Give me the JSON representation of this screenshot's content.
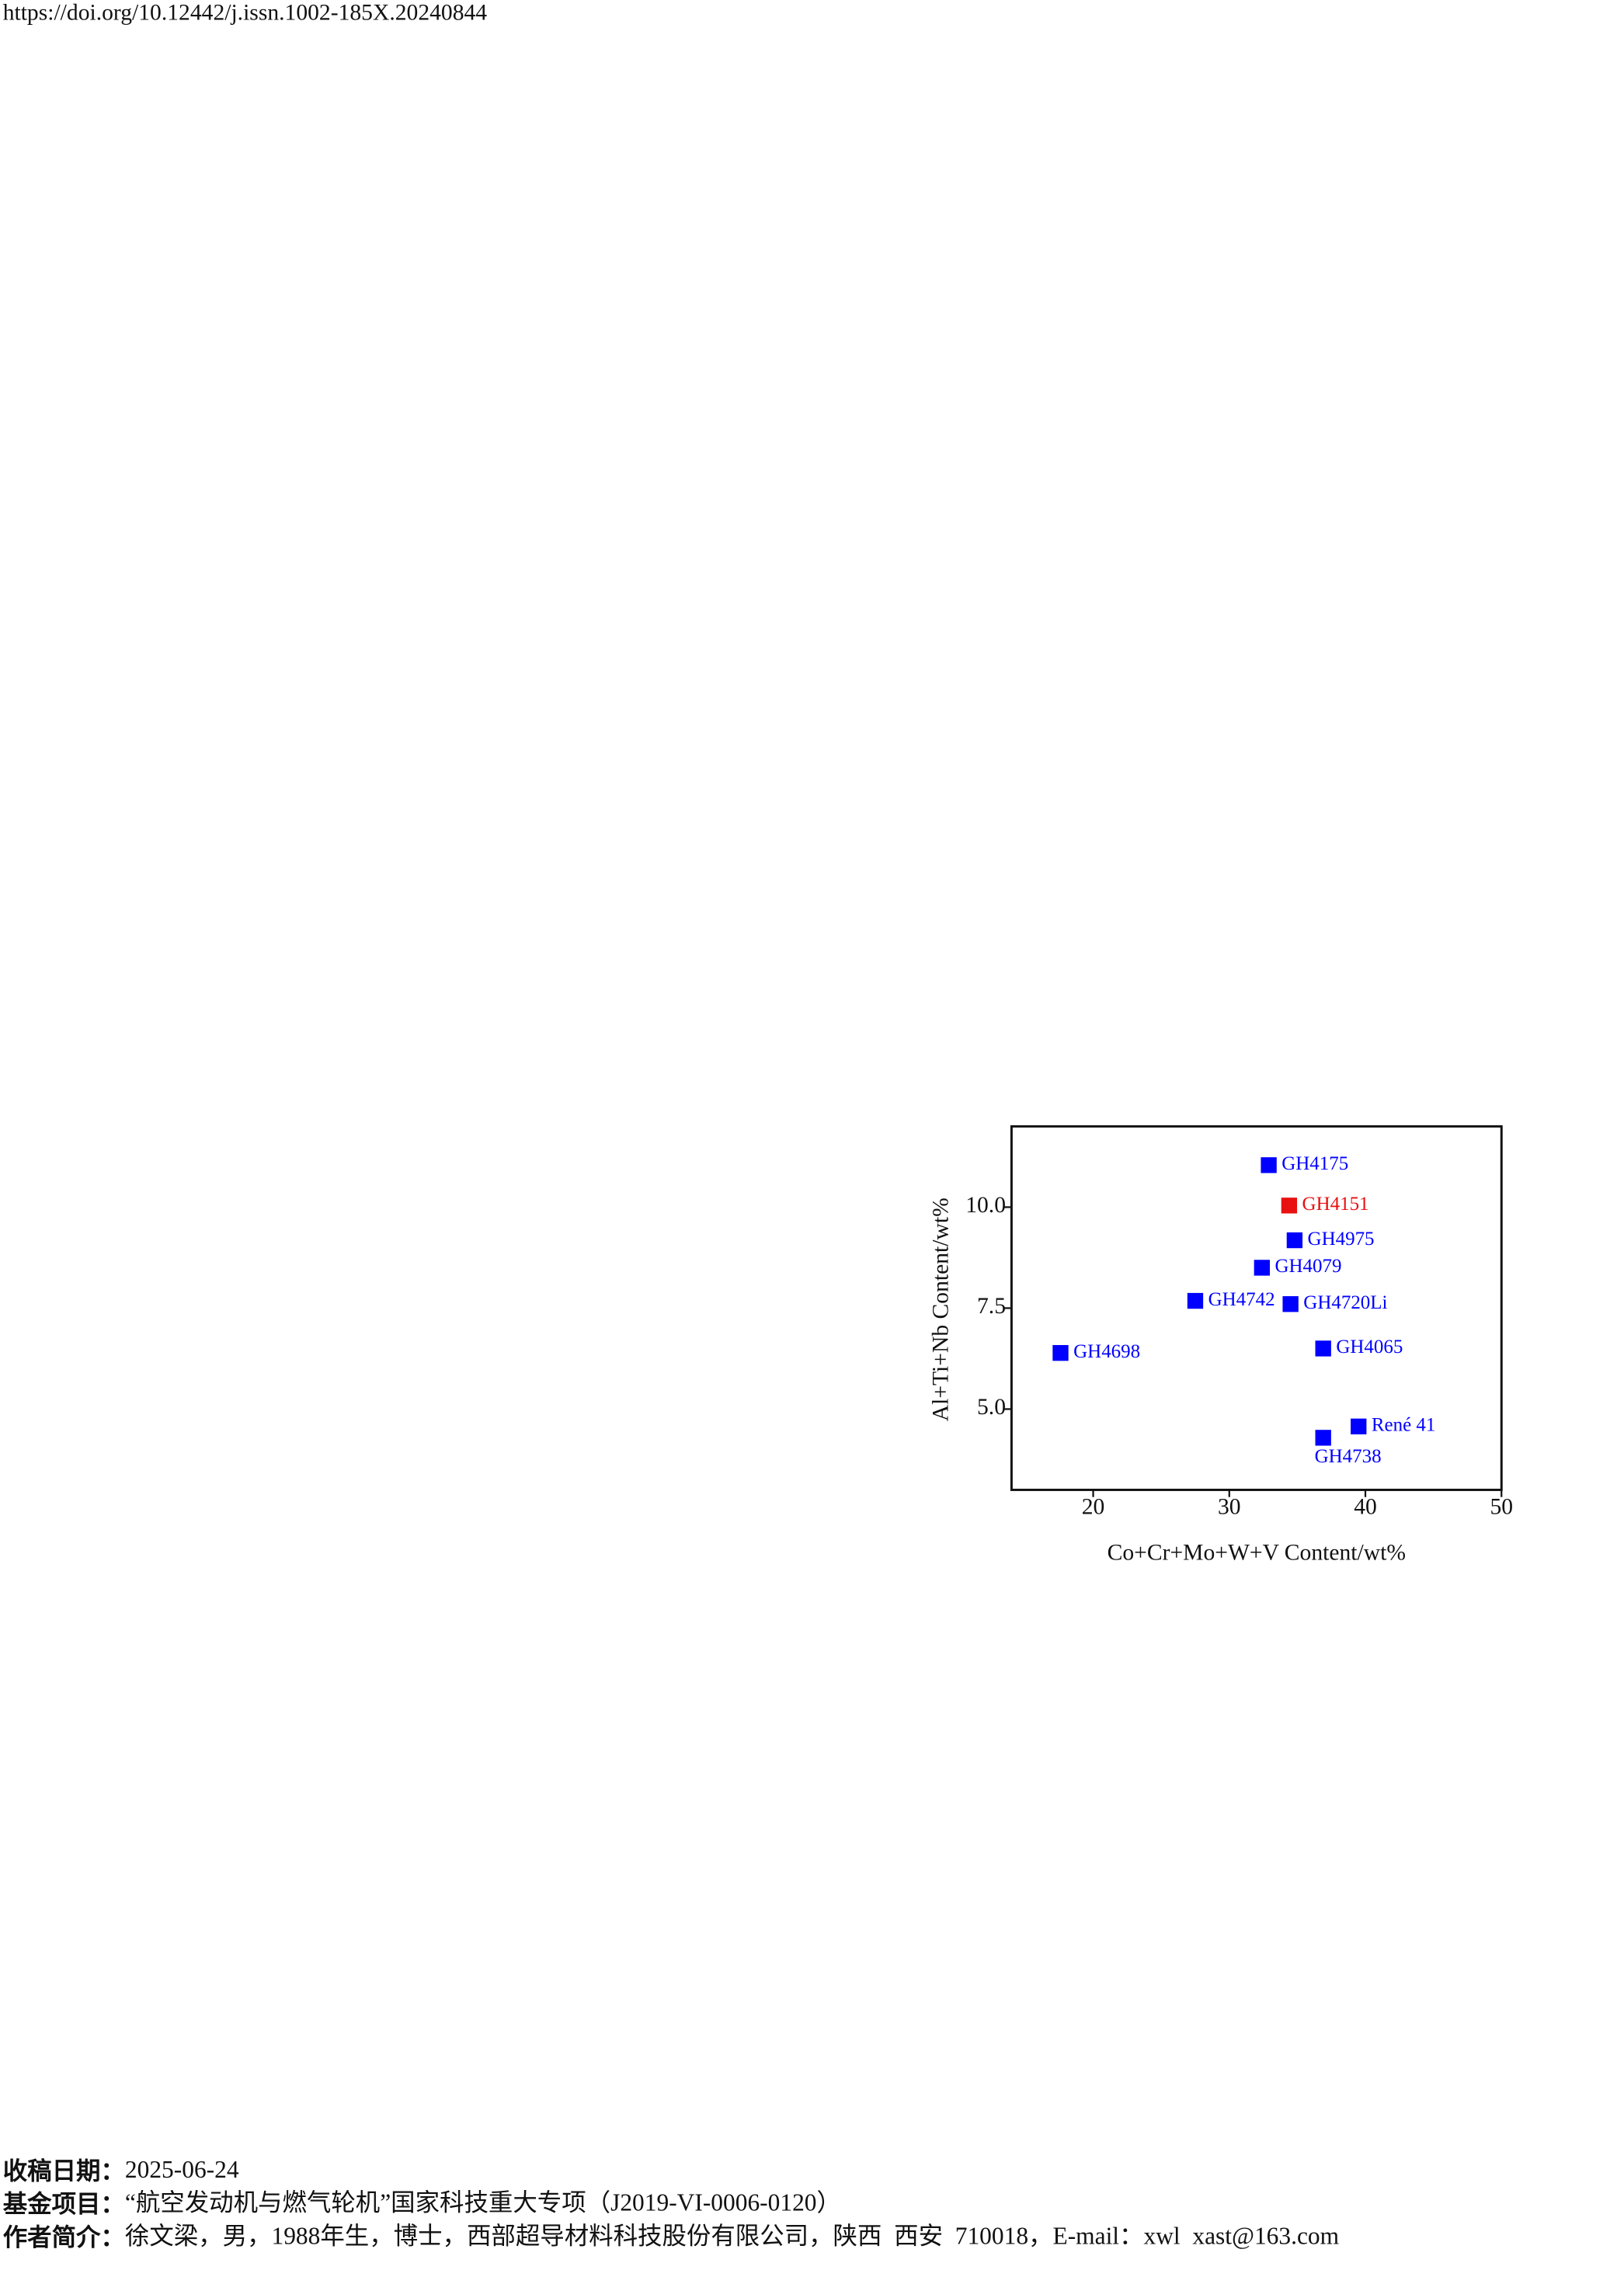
{
  "header": {
    "doi": "https://doi.org/10.12442/j.issn.1002-185X.20240844"
  },
  "chart_data": {
    "type": "scatter",
    "xlabel": "Co+Cr+Mo+W+V Content/wt%",
    "ylabel": "Al+Ti+Nb Content/wt%",
    "xlim": [
      14,
      50
    ],
    "ylim": [
      3,
      12
    ],
    "xticks": [
      20,
      30,
      40,
      50
    ],
    "yticks": [
      {
        "value": 5,
        "label": "5.0"
      },
      7.5,
      {
        "value": 10,
        "label": "10.0"
      }
    ],
    "points": [
      {
        "label": "GH4175",
        "x": 32.9,
        "y": 11.04,
        "color": "#0000ff"
      },
      {
        "label": "GH4151",
        "x": 34.4,
        "y": 10.04,
        "color": "#e81010"
      },
      {
        "label": "GH4975",
        "x": 34.8,
        "y": 9.18,
        "color": "#0000ff"
      },
      {
        "label": "GH4079",
        "x": 32.4,
        "y": 8.5,
        "color": "#0000ff"
      },
      {
        "label": "GH4742",
        "x": 27.5,
        "y": 7.68,
        "color": "#0000ff"
      },
      {
        "label": "GH4720Li",
        "x": 34.5,
        "y": 7.6,
        "color": "#0000ff"
      },
      {
        "label": "GH4698",
        "x": 17.6,
        "y": 6.39,
        "color": "#0000ff"
      },
      {
        "label": "GH4065",
        "x": 36.9,
        "y": 6.5,
        "color": "#0000ff"
      },
      {
        "label": "René 41",
        "x": 39.5,
        "y": 4.57,
        "color": "#0000ff"
      },
      {
        "label": "GH4738",
        "x": 36.9,
        "y": 4.29,
        "color": "#0000ff"
      }
    ]
  },
  "footer": [
    {
      "label": "收稿日期：",
      "text": "2025-06-24"
    },
    {
      "label": "基金项目：",
      "text": "“航空发动机与燃气轮机”国家科技重大专项（J2019-VI-0006-0120）"
    },
    {
      "label": "作者简介：",
      "text": "徐文梁，男，1988年生，博士，西部超导材料科技股份有限公司，陕西  西安  710018，E-mail：xwl  xast@163.com"
    }
  ]
}
